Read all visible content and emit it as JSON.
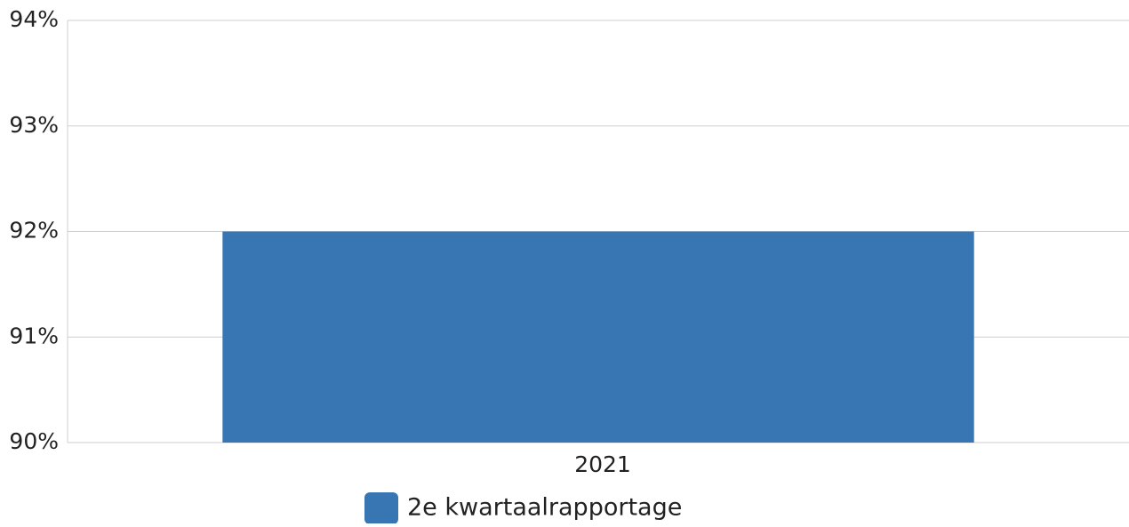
{
  "chart_data": {
    "type": "bar",
    "categories": [
      "2021"
    ],
    "series": [
      {
        "name": "2e kwartaalrapportage",
        "color": "#3776b3",
        "values": [
          92
        ]
      }
    ],
    "ylim": [
      90,
      94
    ],
    "yticks": [
      {
        "value": 90,
        "label": "90%"
      },
      {
        "value": 91,
        "label": "91%"
      },
      {
        "value": 92,
        "label": "92%"
      },
      {
        "value": 93,
        "label": "93%"
      },
      {
        "value": 94,
        "label": "94%"
      }
    ],
    "grid": true
  }
}
